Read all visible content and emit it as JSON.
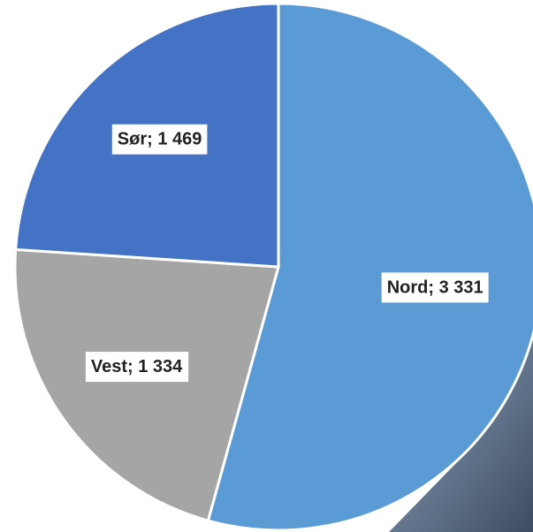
{
  "chart_data": {
    "type": "pie",
    "categories": [
      "Nord",
      "Vest",
      "Sør"
    ],
    "values": [
      3331,
      1334,
      1469
    ],
    "value_labels": [
      "Nord; 3 331",
      "Vest; 1 334",
      "Sør; 1 469"
    ],
    "colors": [
      "#5b9bd5",
      "#a5a5a5",
      "#4472c4"
    ]
  }
}
